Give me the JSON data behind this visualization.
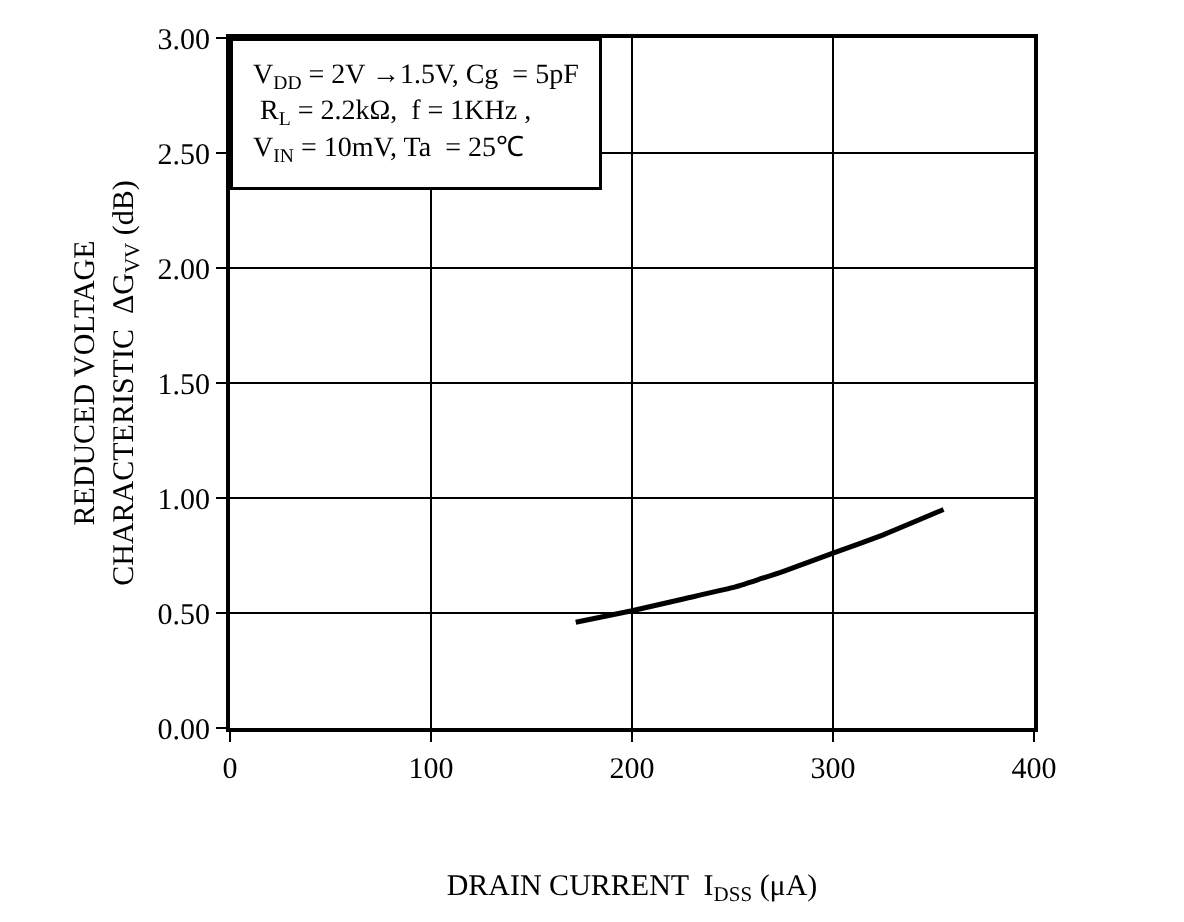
{
  "chart_data": {
    "type": "line",
    "xlabel": "DRAIN CURRENT  I$_{DSS}$ (μA)",
    "ylabel": "REDUCED VOLTAGE\nCHARACTERISTIC  ΔG$_{VV}$ (dB)",
    "x": [
      172,
      200,
      225,
      250,
      275,
      300,
      325,
      355
    ],
    "series": [
      {
        "color": "#000000",
        "values": [
          0.46,
          0.51,
          0.56,
          0.61,
          0.68,
          0.76,
          0.84,
          0.95
        ]
      }
    ],
    "xlim": [
      0,
      400
    ],
    "xticks": [
      0,
      100,
      200,
      300,
      400
    ],
    "ylim": [
      0,
      3
    ],
    "yticks": [
      {
        "value": 0,
        "label": "0.00"
      },
      {
        "value": 0.5,
        "label": "0.50"
      },
      {
        "value": 1,
        "label": "1.00"
      },
      {
        "value": 1.5,
        "label": "1.50"
      },
      {
        "value": 2,
        "label": "2.00"
      },
      {
        "value": 2.5,
        "label": "2.50"
      },
      {
        "value": 3,
        "label": "3.00"
      }
    ],
    "grid": true,
    "marker": "none",
    "line_style": "solid",
    "annotations": [
      "V$_{DD}$ = 2V →1.5V, Cg  = 5pF\n R$_{L}$ = 2.2kΩ,  f = 1KHz ,\nV$_{IN}$ = 10mV, Ta  = 25℃"
    ]
  }
}
